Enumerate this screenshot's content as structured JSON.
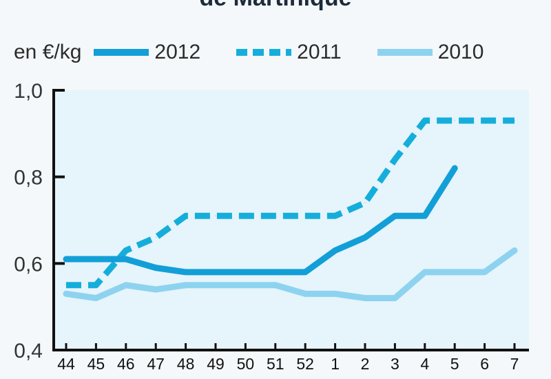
{
  "chart_data": {
    "type": "line",
    "title": "de Martinique",
    "unit_label": "en €/kg",
    "x": [
      "44",
      "45",
      "46",
      "47",
      "48",
      "49",
      "50",
      "51",
      "52",
      "1",
      "2",
      "3",
      "4",
      "5",
      "6",
      "7"
    ],
    "yticks": [
      "1,0",
      "0,8",
      "0,6",
      "0,4"
    ],
    "ylim": [
      0.4,
      1.0
    ],
    "grid": false,
    "legend_position": "top",
    "series": [
      {
        "name": "2012",
        "color": "#129fd8",
        "style": "solid",
        "width": 9,
        "values": [
          0.61,
          0.61,
          0.61,
          0.59,
          0.58,
          0.58,
          0.58,
          0.58,
          0.58,
          0.63,
          0.66,
          0.71,
          0.71,
          0.82,
          null,
          null
        ]
      },
      {
        "name": "2011",
        "color": "#15aedb",
        "style": "dashed",
        "width": 9,
        "values": [
          0.55,
          0.55,
          0.63,
          0.66,
          0.71,
          0.71,
          0.71,
          0.71,
          0.71,
          0.71,
          0.74,
          0.84,
          0.93,
          0.93,
          0.93,
          0.93
        ]
      },
      {
        "name": "2010",
        "color": "#8dd3f0",
        "style": "solid",
        "width": 9,
        "values": [
          0.53,
          0.52,
          0.55,
          0.54,
          0.55,
          0.55,
          0.55,
          0.55,
          0.53,
          0.53,
          0.52,
          0.52,
          0.58,
          0.58,
          0.58,
          0.63
        ]
      }
    ]
  }
}
